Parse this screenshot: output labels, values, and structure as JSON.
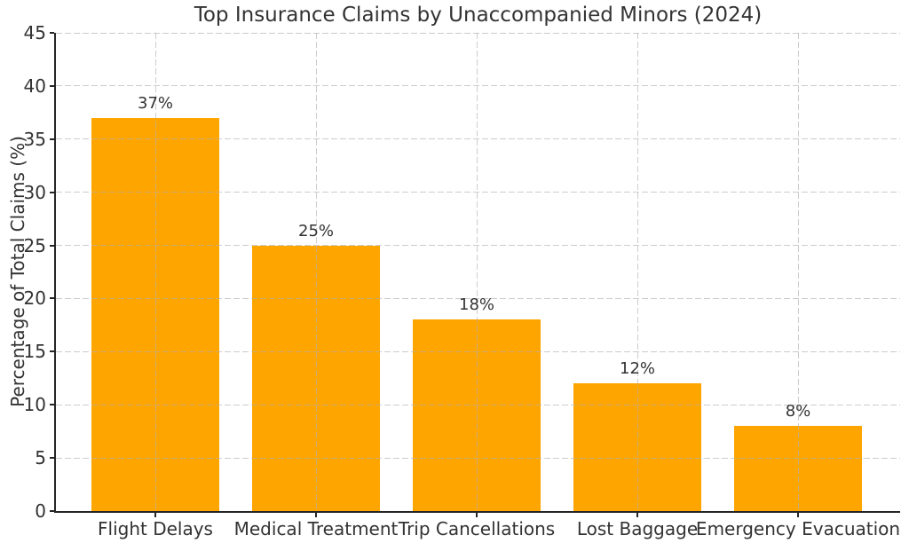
{
  "figure": {
    "kind": "matplotlib-style static bar chart",
    "background": "#ffffff"
  },
  "chart_data": {
    "type": "bar",
    "title": "Top Insurance Claims by Unaccompanied Minors (2024)",
    "categories": [
      "Flight Delays",
      "Medical Treatment",
      "Trip Cancellations",
      "Lost Baggage",
      "Emergency Evacuation"
    ],
    "values": [
      37,
      25,
      18,
      12,
      8
    ],
    "bar_labels": [
      "37%",
      "25%",
      "18%",
      "12%",
      "8%"
    ],
    "xlabel": "",
    "ylabel": "Percentage of Total Claims (%)",
    "ylim": [
      0,
      45
    ],
    "yticks": [
      0,
      5,
      10,
      15,
      20,
      25,
      30,
      35,
      40,
      45
    ],
    "grid": "dashed light-gray gridlines on both axes, drawn over bars",
    "legend": "none",
    "bar_color": "#FFA500",
    "axis_color": "#262626",
    "text_color": "#333333"
  }
}
